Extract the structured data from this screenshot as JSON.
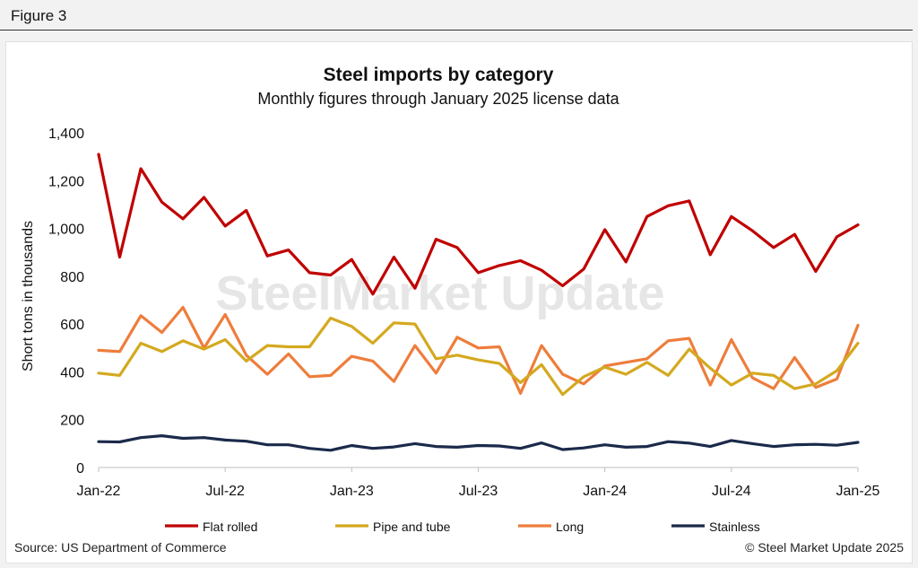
{
  "figure_label": "Figure 3",
  "watermark": "SteelMarket Update",
  "source": "Source: US Department of Commerce",
  "copyright": "© Steel Market Update 2025",
  "chart_data": {
    "type": "line",
    "title": "Steel imports by category",
    "subtitle": "Monthly figures through January 2025 license data",
    "xlabel": "",
    "ylabel": "Short tons in thousands",
    "ylim": [
      0,
      1400
    ],
    "yticks": [
      0,
      200,
      400,
      600,
      800,
      1000,
      1200,
      1400
    ],
    "ytick_labels": [
      "0",
      "200",
      "400",
      "600",
      "800",
      "1,000",
      "1,200",
      "1,400"
    ],
    "grid": false,
    "legend": "bottom",
    "x": [
      "Jan-22",
      "Feb-22",
      "Mar-22",
      "Apr-22",
      "May-22",
      "Jun-22",
      "Jul-22",
      "Aug-22",
      "Sep-22",
      "Oct-22",
      "Nov-22",
      "Dec-22",
      "Jan-23",
      "Feb-23",
      "Mar-23",
      "Apr-23",
      "May-23",
      "Jun-23",
      "Jul-23",
      "Aug-23",
      "Sep-23",
      "Oct-23",
      "Nov-23",
      "Dec-23",
      "Jan-24",
      "Feb-24",
      "Mar-24",
      "Apr-24",
      "May-24",
      "Jun-24",
      "Jul-24",
      "Aug-24",
      "Sep-24",
      "Oct-24",
      "Nov-24",
      "Dec-24",
      "Jan-25"
    ],
    "xtick_labels": [
      "Jan-22",
      "Jul-22",
      "Jan-23",
      "Jul-23",
      "Jan-24",
      "Jul-24",
      "Jan-25"
    ],
    "xtick_indices": [
      0,
      6,
      12,
      18,
      24,
      30,
      36
    ],
    "series": [
      {
        "name": "Flat rolled",
        "color": "#c00000",
        "values": [
          1310,
          880,
          1250,
          1110,
          1040,
          1130,
          1010,
          1075,
          885,
          910,
          815,
          805,
          870,
          725,
          880,
          750,
          955,
          920,
          815,
          845,
          865,
          825,
          760,
          830,
          995,
          860,
          1050,
          1095,
          1115,
          890,
          1050,
          990,
          920,
          975,
          820,
          965,
          1015
        ]
      },
      {
        "name": "Pipe and tube",
        "color": "#d4a920",
        "values": [
          395,
          385,
          520,
          485,
          530,
          495,
          535,
          445,
          510,
          505,
          505,
          625,
          590,
          520,
          605,
          600,
          455,
          470,
          450,
          435,
          355,
          430,
          305,
          380,
          420,
          390,
          440,
          385,
          495,
          415,
          345,
          395,
          385,
          330,
          350,
          405,
          520
        ]
      },
      {
        "name": "Long",
        "color": "#ee7d3c",
        "values": [
          490,
          485,
          635,
          565,
          670,
          500,
          640,
          470,
          390,
          475,
          380,
          385,
          465,
          445,
          360,
          510,
          395,
          545,
          500,
          505,
          310,
          510,
          390,
          350,
          425,
          440,
          455,
          530,
          540,
          345,
          535,
          375,
          330,
          460,
          335,
          370,
          595
        ]
      },
      {
        "name": "Stainless",
        "color": "#1b2a4a",
        "values": [
          108,
          107,
          125,
          133,
          122,
          125,
          115,
          110,
          95,
          95,
          80,
          72,
          92,
          80,
          86,
          100,
          88,
          85,
          92,
          90,
          80,
          103,
          75,
          82,
          95,
          85,
          88,
          108,
          102,
          88,
          113,
          100,
          88,
          95,
          97,
          93,
          105
        ]
      }
    ]
  }
}
